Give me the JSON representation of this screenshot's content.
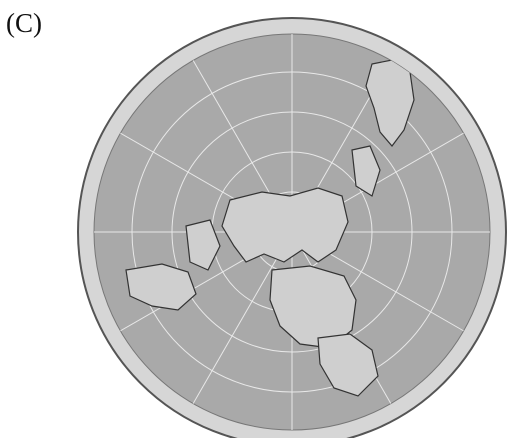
{
  "label": "(C)"
}
